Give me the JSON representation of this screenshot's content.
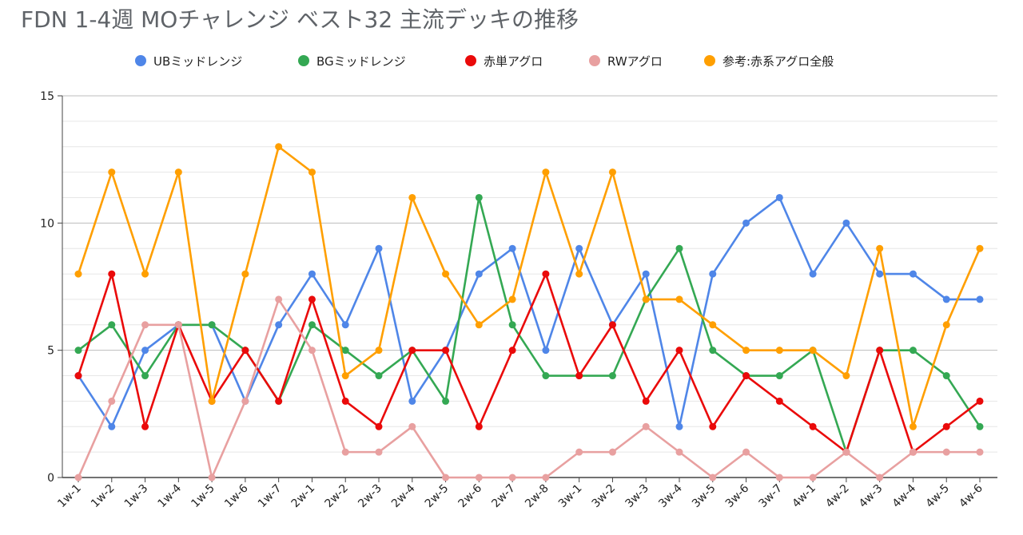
{
  "chart_data": {
    "type": "line",
    "title": "FDN 1-4週 MOチャレンジ ベスト32 主流デッキの推移",
    "xlabel": "",
    "ylabel": "",
    "ylim": [
      0,
      15
    ],
    "yticks": [
      0,
      5,
      10,
      15
    ],
    "grid": true,
    "legend_position": "top",
    "categories": [
      "1w-1",
      "1w-2",
      "1w-3",
      "1w-4",
      "1w-5",
      "1w-6",
      "1w-7",
      "2w-1",
      "2w-2",
      "2w-3",
      "2w-4",
      "2w-5",
      "2w-6",
      "2w-7",
      "2w-8",
      "3w-1",
      "3w-2",
      "3w-3",
      "3w-4",
      "3w-5",
      "3w-6",
      "3w-7",
      "4w-1",
      "4w-2",
      "4w-3",
      "4w-4",
      "4w-5",
      "4w-6"
    ],
    "series": [
      {
        "name": "UBミッドレンジ",
        "color": "#4f86e8",
        "values": [
          4,
          2,
          5,
          6,
          6,
          3,
          6,
          8,
          6,
          9,
          3,
          5,
          8,
          9,
          5,
          9,
          6,
          8,
          2,
          8,
          10,
          11,
          8,
          10,
          8,
          8,
          7,
          7
        ]
      },
      {
        "name": "BGミッドレンジ",
        "color": "#34a853",
        "values": [
          5,
          6,
          4,
          6,
          6,
          5,
          3,
          6,
          5,
          4,
          5,
          3,
          11,
          6,
          4,
          4,
          4,
          7,
          9,
          5,
          4,
          4,
          5,
          1,
          5,
          5,
          4,
          2
        ]
      },
      {
        "name": "赤単アグロ",
        "color": "#ea0a0a",
        "values": [
          4,
          8,
          2,
          6,
          3,
          5,
          3,
          7,
          3,
          2,
          5,
          5,
          2,
          5,
          8,
          4,
          6,
          3,
          5,
          2,
          4,
          3,
          2,
          1,
          5,
          1,
          2,
          3
        ]
      },
      {
        "name": "RWアグロ",
        "color": "#e8a0a0",
        "values": [
          0,
          3,
          6,
          6,
          0,
          3,
          7,
          5,
          1,
          1,
          2,
          0,
          0,
          0,
          0,
          1,
          1,
          2,
          1,
          0,
          1,
          0,
          0,
          1,
          0,
          1,
          1,
          1
        ]
      },
      {
        "name": "参考:赤系アグロ全般",
        "color": "#ff9f00",
        "values": [
          8,
          12,
          8,
          12,
          3,
          8,
          13,
          12,
          4,
          5,
          11,
          8,
          6,
          7,
          12,
          8,
          12,
          7,
          7,
          6,
          5,
          5,
          5,
          4,
          9,
          2,
          6,
          9
        ]
      }
    ]
  }
}
